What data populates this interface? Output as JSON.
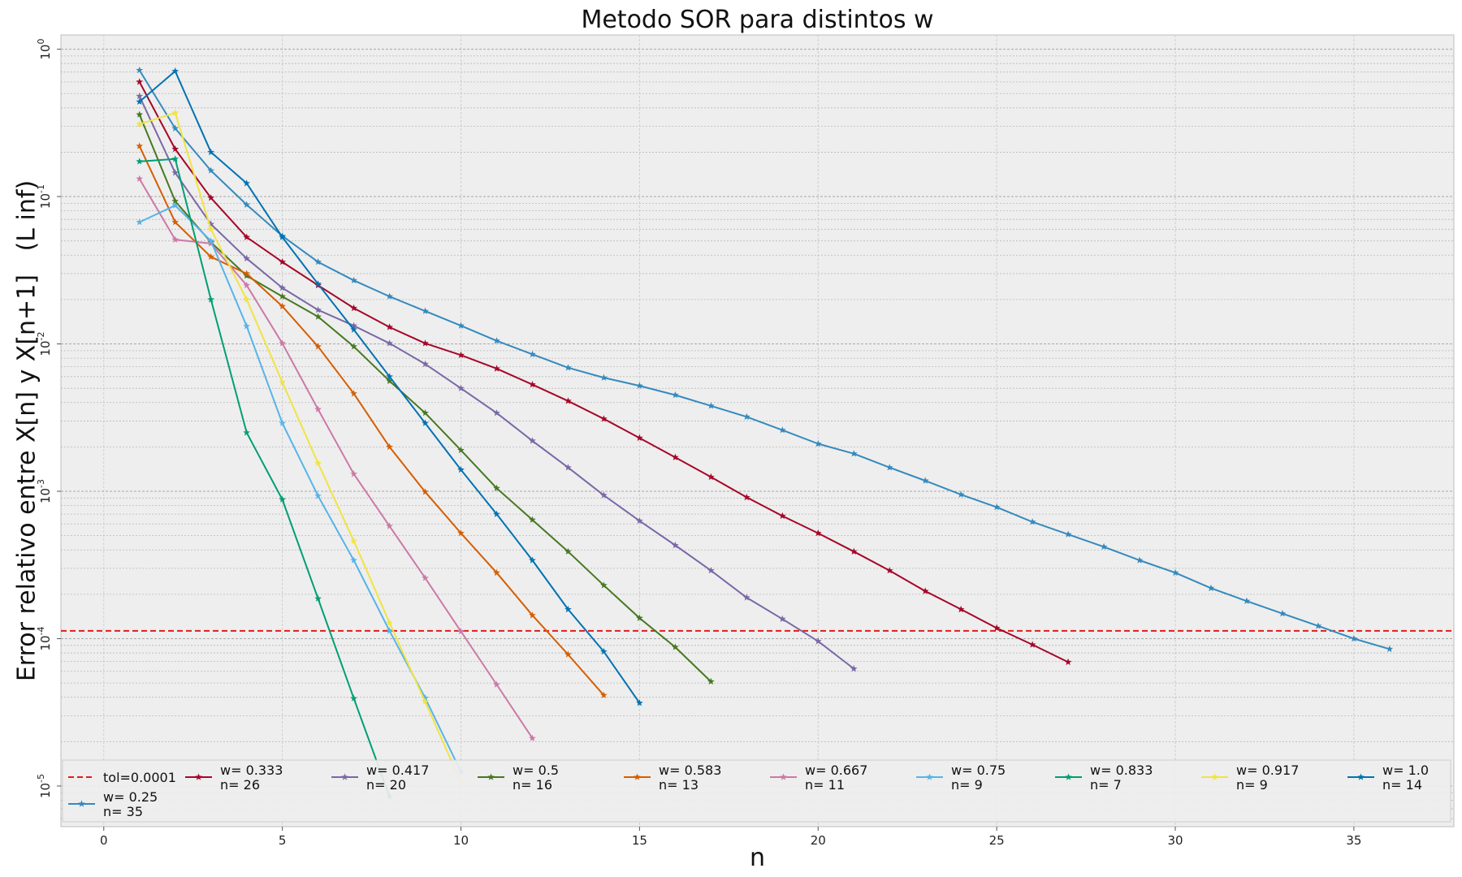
{
  "chart_data": {
    "type": "line",
    "title": "Metodo SOR para distintos w",
    "xlabel": "n",
    "ylabel": "Error relativo entre X[n] y X[n+1]   (L inf)",
    "xlim": [
      -1.2,
      37.8
    ],
    "ylim": [
      5.3e-06,
      1.25
    ],
    "yscale": "log",
    "grid": true,
    "legend_position": "bottom",
    "x_ticks": [
      "0",
      "5",
      "10",
      "15",
      "20",
      "25",
      "30",
      "35"
    ],
    "x_tick_values": [
      0,
      5,
      10,
      15,
      20,
      25,
      30,
      35
    ],
    "y_ticks": [
      {
        "value": 1,
        "base": "10",
        "exp": "0"
      },
      {
        "value": 0.1,
        "base": "10",
        "exp": "-1"
      },
      {
        "value": 0.01,
        "base": "10",
        "exp": "-2"
      },
      {
        "value": 0.001,
        "base": "10",
        "exp": "-3"
      },
      {
        "value": 0.0001,
        "base": "10",
        "exp": "-4"
      },
      {
        "value": 1e-05,
        "base": "10",
        "exp": "-5"
      }
    ],
    "tolerance": {
      "label": "tol=0.0001",
      "value": 0.000113,
      "color": "#e41a1c"
    },
    "series": [
      {
        "name": "w= 0.25",
        "n_label": "n= 35",
        "color": "#348abd",
        "x": [
          1,
          2,
          3,
          4,
          5,
          6,
          7,
          8,
          9,
          10,
          11,
          12,
          13,
          14,
          15,
          16,
          17,
          18,
          19,
          20,
          21,
          22,
          23,
          24,
          25,
          26,
          27,
          28,
          29,
          30,
          31,
          32,
          33,
          34,
          35,
          36
        ],
        "y": [
          0.72,
          0.29,
          0.15,
          0.088,
          0.054,
          0.036,
          0.027,
          0.021,
          0.0167,
          0.0133,
          0.0105,
          0.0085,
          0.0069,
          0.0059,
          0.0052,
          0.0045,
          0.0038,
          0.0032,
          0.0026,
          0.0021,
          0.0018,
          0.00145,
          0.00118,
          0.00095,
          0.00078,
          0.00062,
          0.00051,
          0.00042,
          0.00034,
          0.00028,
          0.00022,
          0.00018,
          0.000148,
          0.000122,
          0.0001,
          8.5e-05
        ]
      },
      {
        "name": "w= 0.333",
        "n_label": "n= 26",
        "color": "#a60628",
        "x": [
          1,
          2,
          3,
          4,
          5,
          6,
          7,
          8,
          9,
          10,
          11,
          12,
          13,
          14,
          15,
          16,
          17,
          18,
          19,
          20,
          21,
          22,
          23,
          24,
          25,
          26,
          27
        ],
        "y": [
          0.6,
          0.21,
          0.098,
          0.053,
          0.036,
          0.025,
          0.0175,
          0.013,
          0.0101,
          0.0084,
          0.0068,
          0.0053,
          0.0041,
          0.0031,
          0.0023,
          0.0017,
          0.00125,
          0.00091,
          0.00068,
          0.00052,
          0.00039,
          0.00029,
          0.00021,
          0.000158,
          0.000118,
          9.1e-05,
          6.93e-05
        ]
      },
      {
        "name": "w= 0.417",
        "n_label": "n= 20",
        "color": "#7a68a6",
        "x": [
          1,
          2,
          3,
          4,
          5,
          6,
          7,
          8,
          9,
          10,
          11,
          12,
          13,
          14,
          15,
          16,
          17,
          18,
          19,
          20,
          21
        ],
        "y": [
          0.48,
          0.145,
          0.065,
          0.038,
          0.024,
          0.017,
          0.0133,
          0.0101,
          0.0073,
          0.005,
          0.0034,
          0.0022,
          0.00145,
          0.00094,
          0.00063,
          0.00043,
          0.00029,
          0.00019,
          0.000136,
          9.6e-05,
          6.25e-05
        ]
      },
      {
        "name": "w= 0.5",
        "n_label": "n= 16",
        "color": "#467821",
        "x": [
          1,
          2,
          3,
          4,
          5,
          6,
          7,
          8,
          9,
          10,
          11,
          12,
          13,
          14,
          15,
          16,
          17
        ],
        "y": [
          0.36,
          0.093,
          0.049,
          0.029,
          0.021,
          0.0153,
          0.0096,
          0.0056,
          0.0034,
          0.0019,
          0.00105,
          0.00064,
          0.00039,
          0.00023,
          0.000138,
          8.75e-05,
          5.11e-05
        ]
      },
      {
        "name": "w= 0.583",
        "n_label": "n= 13",
        "color": "#d55e00",
        "x": [
          1,
          2,
          3,
          4,
          5,
          6,
          7,
          8,
          9,
          10,
          11,
          12,
          13,
          14
        ],
        "y": [
          0.22,
          0.067,
          0.039,
          0.03,
          0.018,
          0.0096,
          0.0046,
          0.002,
          0.00099,
          0.00052,
          0.00028,
          0.000144,
          7.81e-05,
          4.13e-05
        ]
      },
      {
        "name": "w= 0.667",
        "n_label": "n= 11",
        "color": "#cc79a7",
        "x": [
          1,
          2,
          3,
          4,
          5,
          6,
          7,
          8,
          9,
          10,
          11,
          12
        ],
        "y": [
          0.132,
          0.051,
          0.048,
          0.025,
          0.0101,
          0.0036,
          0.00131,
          0.00058,
          0.000258,
          0.000112,
          4.88e-05,
          2.11e-05
        ]
      },
      {
        "name": "w= 0.75",
        "n_label": "n= 9",
        "color": "#56b4e9",
        "x": [
          1,
          2,
          3,
          4,
          5,
          6,
          7,
          8,
          9,
          10
        ],
        "y": [
          0.067,
          0.087,
          0.05,
          0.0132,
          0.0029,
          0.00093,
          0.00034,
          0.000113,
          3.96e-05,
          1.25e-05
        ]
      },
      {
        "name": "w= 0.833",
        "n_label": "n= 7",
        "color": "#009e73",
        "x": [
          1,
          2,
          3,
          4,
          5,
          6,
          7,
          8
        ],
        "y": [
          0.173,
          0.18,
          0.02,
          0.0025,
          0.00088,
          0.000187,
          3.93e-05,
          8.5e-06
        ]
      },
      {
        "name": "w= 0.917",
        "n_label": "n= 9",
        "color": "#f0e442",
        "x": [
          1,
          2,
          3,
          4,
          5,
          6,
          7,
          8,
          9,
          10
        ],
        "y": [
          0.31,
          0.37,
          0.06,
          0.02,
          0.0055,
          0.00155,
          0.00046,
          0.000128,
          3.73e-05,
          1.06e-05
        ]
      },
      {
        "name": "w= 1.0",
        "n_label": "n= 14",
        "color": "#0072b2",
        "x": [
          1,
          2,
          3,
          4,
          5,
          6,
          7,
          8,
          9,
          10,
          11,
          12,
          13,
          14,
          15
        ],
        "y": [
          0.44,
          0.71,
          0.2,
          0.123,
          0.053,
          0.0255,
          0.0125,
          0.006,
          0.0029,
          0.0014,
          0.0007,
          0.00034,
          0.000158,
          8.17e-05,
          3.66e-05
        ]
      }
    ]
  }
}
